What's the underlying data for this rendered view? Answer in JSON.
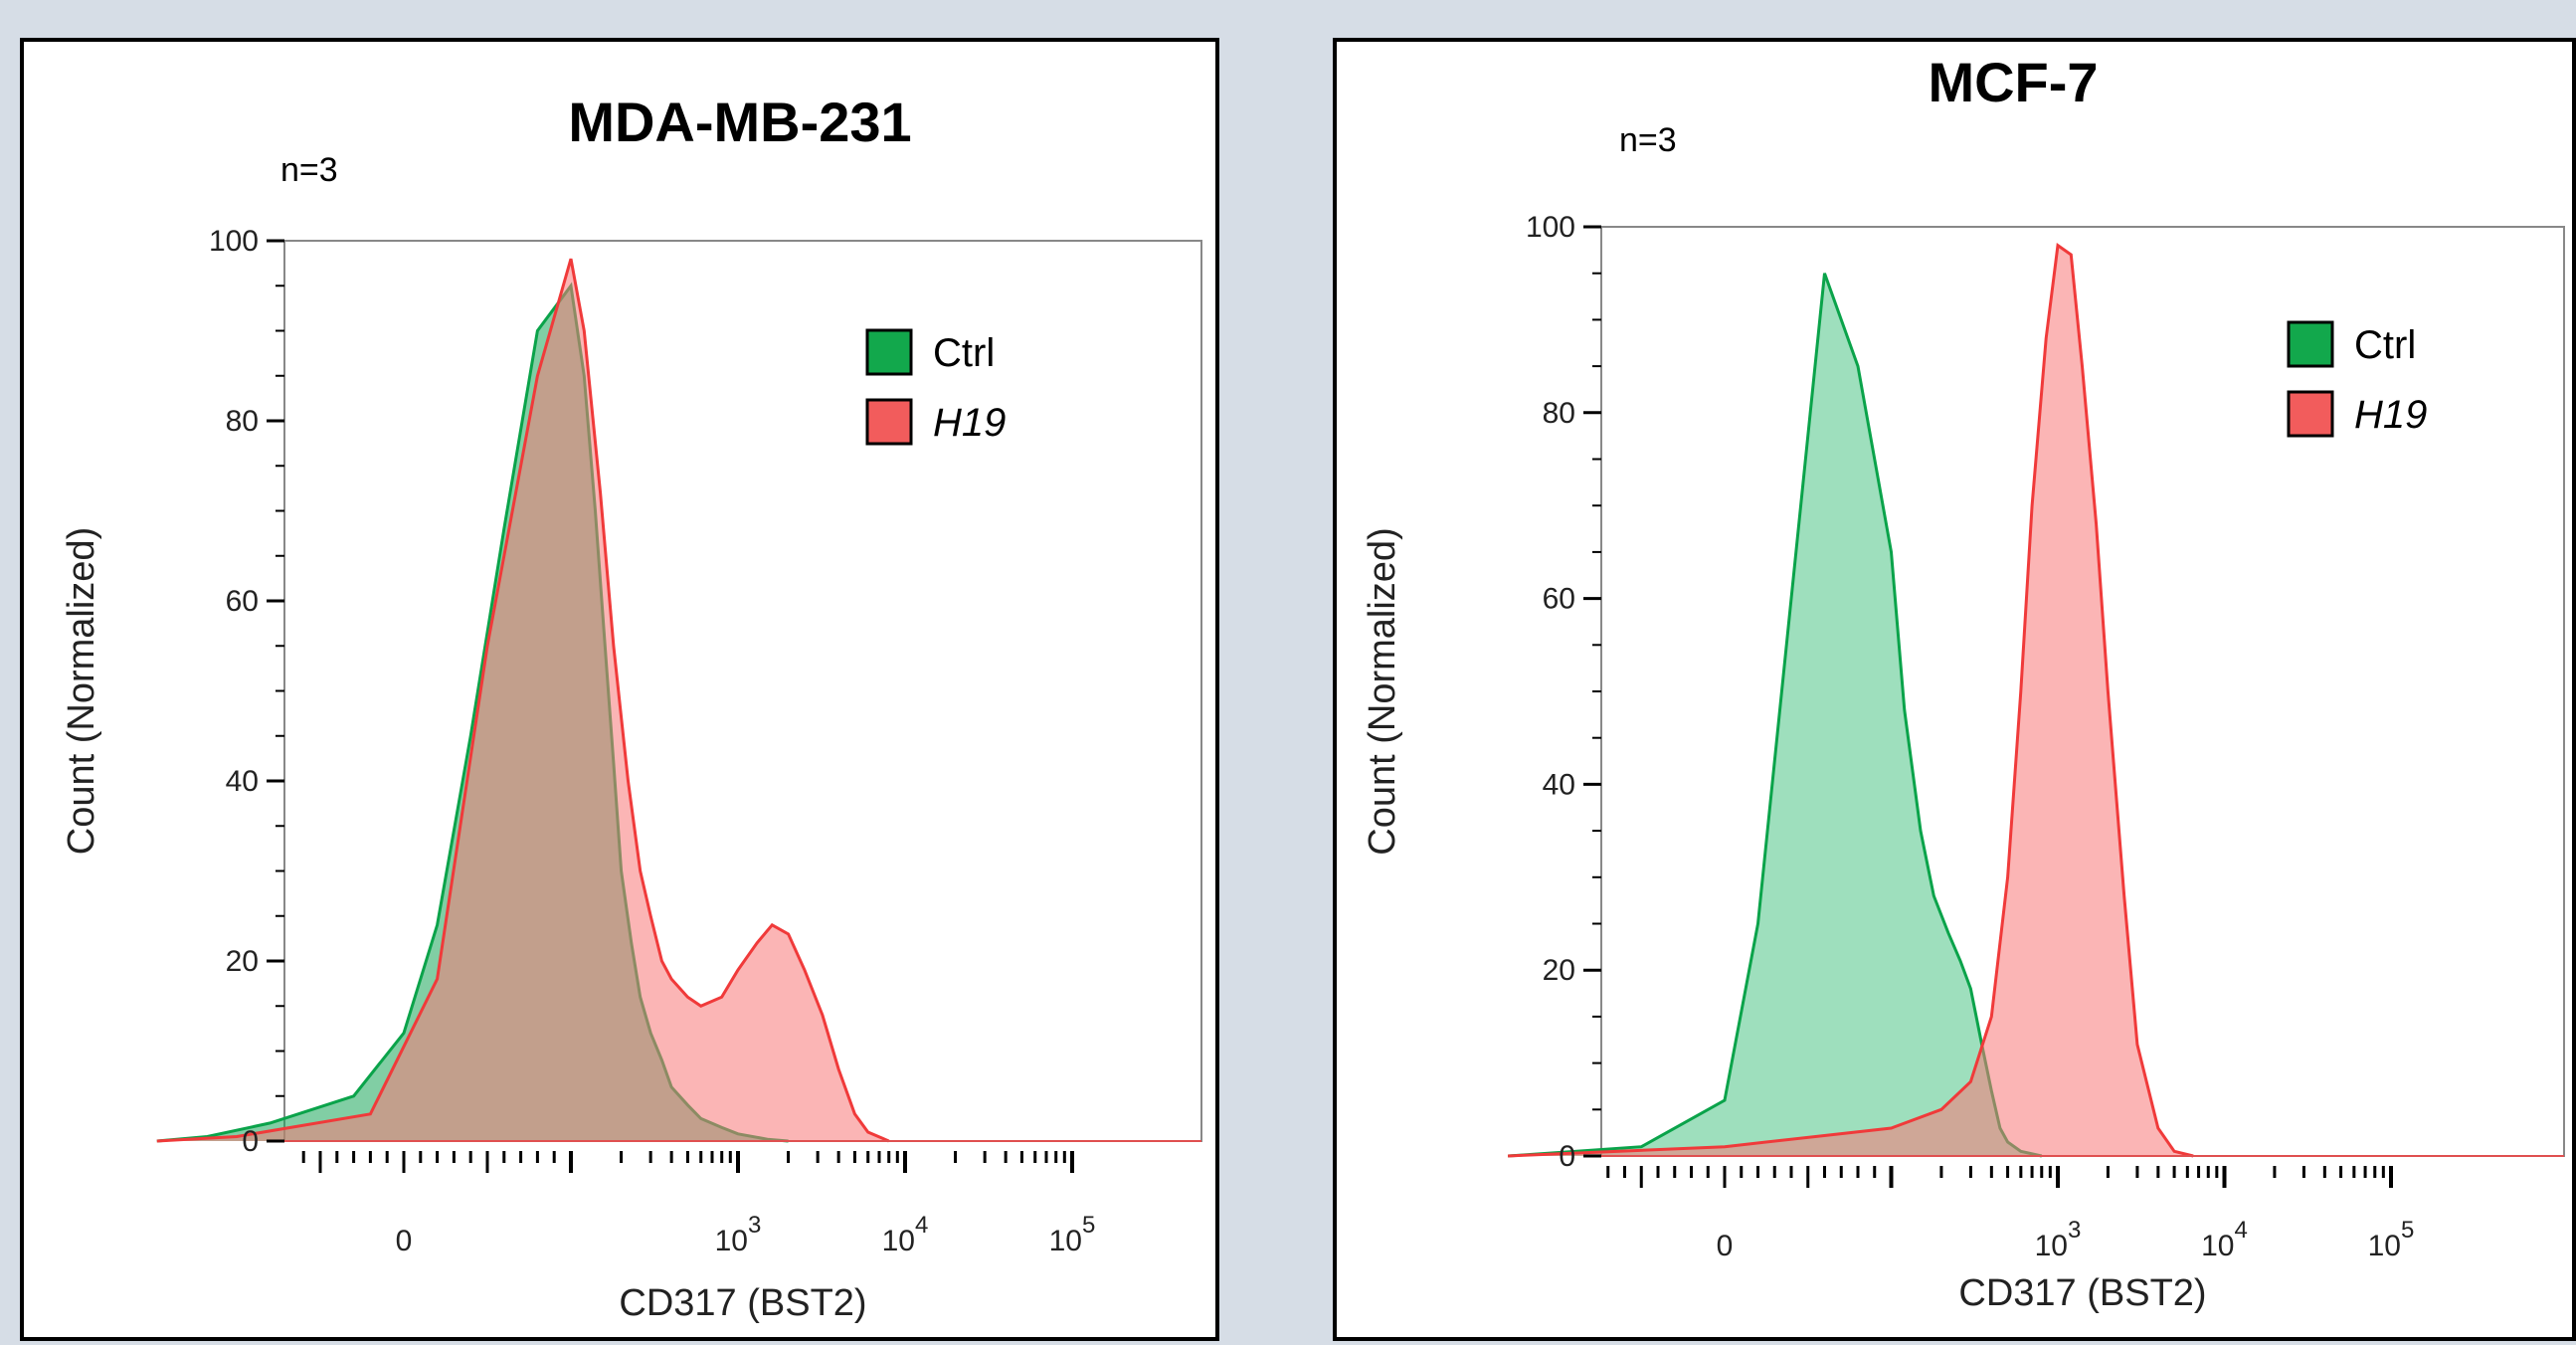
{
  "chart_data": [
    {
      "type": "area",
      "title": "MDA-MB-231",
      "annotation": "n=3",
      "xlabel": "CD317 (BST2)",
      "ylabel": "Count (Normalized)",
      "yticks": [
        "0",
        "20",
        "40",
        "60",
        "80",
        "100"
      ],
      "ylim": [
        0,
        100
      ],
      "x_scale": "biexponential",
      "xticks": [
        {
          "value": 0,
          "label": "0",
          "exp": ""
        },
        {
          "value": 1000,
          "label": "10",
          "exp": "3"
        },
        {
          "value": 10000,
          "label": "10",
          "exp": "4"
        },
        {
          "value": 100000,
          "label": "10",
          "exp": "5"
        }
      ],
      "legend_position": "top-right",
      "series": [
        {
          "name": "Ctrl",
          "color": "#0aa34a",
          "fill": "#1aa65a",
          "x": [
            -300,
            -150,
            -80,
            -30,
            0,
            20,
            40,
            60,
            80,
            100,
            120,
            140,
            160,
            180,
            200,
            230,
            260,
            300,
            350,
            400,
            500,
            600,
            800,
            1000,
            1500,
            2000
          ],
          "y": [
            0,
            0.5,
            2,
            5,
            12,
            24,
            45,
            68,
            90,
            95,
            85,
            70,
            55,
            42,
            30,
            22,
            16,
            12,
            9,
            6,
            4,
            2.5,
            1.5,
            0.8,
            0.2,
            0
          ]
        },
        {
          "name": "H19",
          "color": "#f03a3a",
          "fill": "#f87878",
          "x": [
            -300,
            -100,
            -20,
            20,
            50,
            80,
            100,
            120,
            150,
            180,
            220,
            260,
            300,
            350,
            400,
            500,
            600,
            800,
            1000,
            1300,
            1600,
            2000,
            2500,
            3200,
            4000,
            5000,
            6000,
            8000
          ],
          "y": [
            0,
            0.5,
            3,
            18,
            55,
            85,
            98,
            90,
            72,
            55,
            40,
            30,
            25,
            20,
            18,
            16,
            15,
            16,
            19,
            22,
            24,
            23,
            19,
            14,
            8,
            3,
            1,
            0
          ]
        }
      ]
    },
    {
      "type": "area",
      "title": "MCF-7",
      "annotation": "n=3",
      "xlabel": "CD317 (BST2)",
      "ylabel": "Count (Normalized)",
      "yticks": [
        "0",
        "20",
        "40",
        "60",
        "80",
        "100"
      ],
      "ylim": [
        0,
        100
      ],
      "x_scale": "biexponential",
      "xticks": [
        {
          "value": 0,
          "label": "0",
          "exp": ""
        },
        {
          "value": 1000,
          "label": "10",
          "exp": "3"
        },
        {
          "value": 10000,
          "label": "10",
          "exp": "4"
        },
        {
          "value": 100000,
          "label": "10",
          "exp": "5"
        }
      ],
      "legend_position": "top-right",
      "series": [
        {
          "name": "Ctrl",
          "color": "#0aa34a",
          "fill": "#4fc486",
          "x": [
            -200,
            -50,
            0,
            20,
            40,
            60,
            80,
            100,
            120,
            150,
            180,
            220,
            260,
            300,
            350,
            400,
            450,
            500,
            600,
            800
          ],
          "y": [
            0,
            1,
            6,
            25,
            60,
            95,
            85,
            65,
            48,
            35,
            28,
            24,
            21,
            18,
            12,
            7,
            3,
            1.5,
            0.5,
            0
          ]
        },
        {
          "name": "H19",
          "color": "#f03a3a",
          "fill": "#f87878",
          "x": [
            -200,
            0,
            100,
            200,
            300,
            400,
            500,
            600,
            700,
            850,
            1000,
            1200,
            1400,
            1700,
            2000,
            2500,
            3000,
            4000,
            5000,
            6500
          ],
          "y": [
            0,
            1,
            3,
            5,
            8,
            15,
            30,
            50,
            70,
            88,
            98,
            97,
            85,
            68,
            50,
            28,
            12,
            3,
            0.5,
            0
          ]
        }
      ]
    }
  ]
}
